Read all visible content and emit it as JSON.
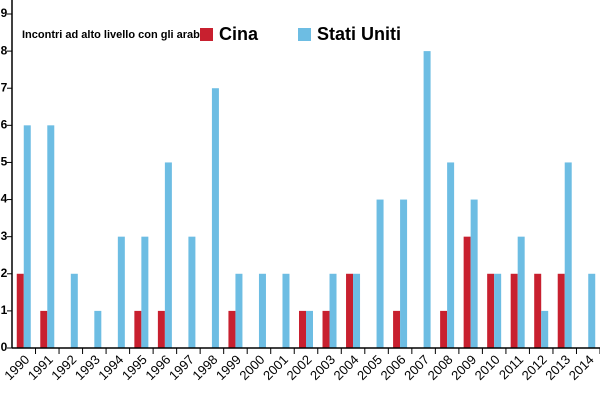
{
  "chart_data": {
    "type": "bar",
    "legend_title": "Incontri ad alto livello con gli arabi:",
    "categories": [
      "1990",
      "1991",
      "1992",
      "1993",
      "1994",
      "1995",
      "1996",
      "1997",
      "1998",
      "1999",
      "2000",
      "2001",
      "2002",
      "2003",
      "2004",
      "2005",
      "2006",
      "2007",
      "2008",
      "2009",
      "2010",
      "2011",
      "2012",
      "2013",
      "2014"
    ],
    "series": [
      {
        "name": "Cina",
        "color": "#c8202f",
        "values": [
          2,
          1,
          0,
          0,
          0,
          1,
          1,
          0,
          0,
          1,
          0,
          0,
          1,
          1,
          2,
          0,
          1,
          0,
          1,
          3,
          2,
          2,
          2,
          2,
          0
        ]
      },
      {
        "name": "Stati Uniti",
        "color": "#6dbde3",
        "values": [
          6,
          6,
          2,
          1,
          3,
          3,
          5,
          3,
          7,
          2,
          2,
          2,
          1,
          2,
          2,
          4,
          4,
          8,
          5,
          4,
          2,
          3,
          1,
          5,
          2
        ]
      }
    ],
    "ylim": [
      0,
      9
    ],
    "yticks": [
      0,
      1,
      2,
      3,
      4,
      5,
      6,
      7,
      8,
      9
    ]
  }
}
